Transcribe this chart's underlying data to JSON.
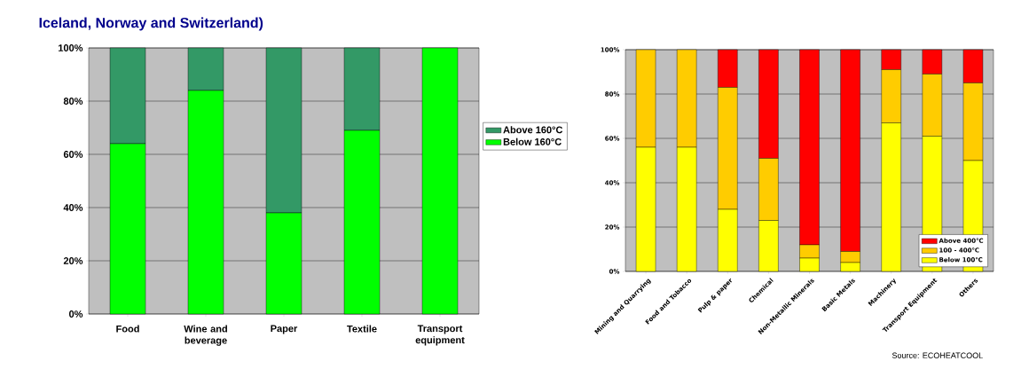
{
  "chart_data": [
    {
      "type": "bar",
      "title": "Iceland, Norway and Switzerland)",
      "categories": [
        "Food",
        "Wine and beverage",
        "Paper",
        "Textile",
        "Transport equipment"
      ],
      "stacked": true,
      "series": [
        {
          "name": "Below 160°C",
          "color": "#00ff00",
          "values": [
            64,
            84,
            38,
            69,
            100
          ]
        },
        {
          "name": "Above 160°C",
          "color": "#339966",
          "values": [
            36,
            16,
            62,
            31,
            0
          ]
        }
      ],
      "ylim": [
        0,
        100
      ],
      "yticks": [
        {
          "value": 0,
          "label": "0%"
        },
        {
          "value": 20,
          "label": "20%"
        },
        {
          "value": 40,
          "label": "40%"
        },
        {
          "value": 60,
          "label": "60%"
        },
        {
          "value": 80,
          "label": "80%"
        },
        {
          "value": 100,
          "label": "100%"
        }
      ],
      "grid": "y",
      "legend": "right"
    },
    {
      "type": "bar",
      "categories": [
        "Mining and Quarrying",
        "Food and Tobacco",
        "Pulp & paper",
        "Chemical",
        "Non-Metallic Minerals",
        "Basic Metals",
        "Machinery",
        "Transport Equipment",
        "Others"
      ],
      "stacked": true,
      "series": [
        {
          "name": "Below 100℃",
          "color": "#ffff00",
          "values": [
            56,
            56,
            28,
            23,
            6,
            4,
            67,
            61,
            50
          ]
        },
        {
          "name": "100 - 400℃",
          "color": "#ffcc00",
          "values": [
            44,
            44,
            55,
            28,
            6,
            5,
            24,
            28,
            35
          ]
        },
        {
          "name": "Above 400℃",
          "color": "#ff0000",
          "values": [
            0,
            0,
            17,
            49,
            88,
            91,
            9,
            11,
            15
          ]
        }
      ],
      "ylim": [
        0,
        100
      ],
      "yticks": [
        {
          "value": 0,
          "label": "0%"
        },
        {
          "value": 20,
          "label": "20%"
        },
        {
          "value": 40,
          "label": "40%"
        },
        {
          "value": 60,
          "label": "60%"
        },
        {
          "value": 80,
          "label": "80%"
        },
        {
          "value": 100,
          "label": "100%"
        }
      ],
      "grid": "y",
      "legend": "bottom right",
      "annotations": [
        "Source: ECOHEATCOOL"
      ]
    }
  ]
}
